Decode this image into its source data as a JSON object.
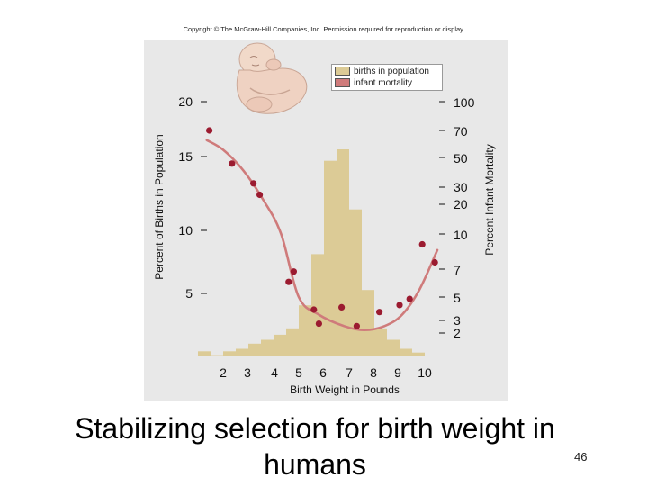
{
  "copyright": "Copyright © The McGraw-Hill Companies, Inc. Permission required for reproduction or display.",
  "caption": "Stabilizing selection for birth weight in humans",
  "slide_number": "46",
  "icons": {
    "baby": "baby-image"
  },
  "colors": {
    "bar": "#dccb96",
    "curve": "#cf7b7b",
    "point": "#9b1b30",
    "panel": "#e8e8e8"
  },
  "chart_data": {
    "type": "bar+line",
    "xlabel": "Birth Weight in Pounds",
    "ylabel_left": "Percent of Births in Population",
    "ylabel_right": "Percent Infant Mortality",
    "x_ticks": [
      "2",
      "3",
      "4",
      "5",
      "6",
      "7",
      "8",
      "9",
      "10"
    ],
    "y_left_ticks": [
      "20",
      "15",
      "10",
      "5"
    ],
    "y_left_range": [
      0,
      20
    ],
    "y_right_ticks": [
      "100",
      "70",
      "50",
      "30",
      "20",
      "10",
      "7",
      "5",
      "3",
      "2"
    ],
    "legend": [
      "births in population",
      "infant mortality"
    ],
    "series": [
      {
        "name": "births in population",
        "type": "bar",
        "bin_centers": [
          1.25,
          1.75,
          2.25,
          2.75,
          3.25,
          3.75,
          4.25,
          4.75,
          5.25,
          5.75,
          6.25,
          6.75,
          7.25,
          7.75,
          8.25,
          8.75,
          9.25,
          9.75
        ],
        "values": [
          0.4,
          0.1,
          0.4,
          0.6,
          1.0,
          1.3,
          1.7,
          2.2,
          4.0,
          8.0,
          15.3,
          16.2,
          11.5,
          5.2,
          2.2,
          1.3,
          0.6,
          0.3
        ]
      },
      {
        "name": "infant mortality",
        "type": "scatter",
        "x": [
          1.45,
          2.35,
          3.2,
          3.45,
          4.6,
          4.8,
          5.6,
          5.8,
          6.7,
          7.3,
          8.2,
          9.0,
          9.4,
          9.9,
          10.4
        ],
        "y": [
          70,
          45,
          32,
          25,
          6.0,
          6.8,
          3.8,
          2.7,
          4.0,
          2.5,
          3.6,
          4.2,
          4.8,
          9.0,
          7.5
        ]
      }
    ]
  }
}
